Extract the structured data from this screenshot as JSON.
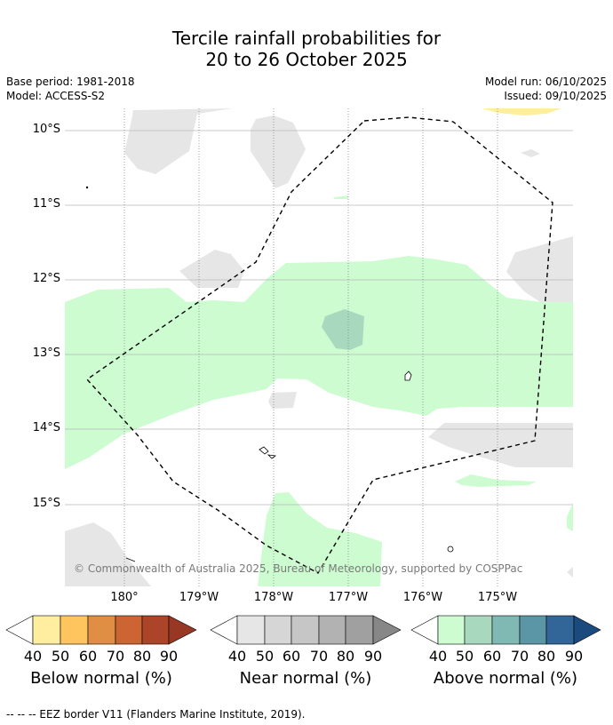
{
  "header": {
    "title_line1": "Tercile rainfall probabilities for",
    "title_line2": "20 to 26 October 2025",
    "base_period": "Base period: 1981-2018",
    "model": "Model: ACCESS-S2",
    "model_run": "Model run: 06/10/2025",
    "issued": "Issued: 09/10/2025"
  },
  "map": {
    "latitude_labels": [
      "10°S",
      "11°S",
      "12°S",
      "13°S",
      "14°S",
      "15°S"
    ],
    "longitude_labels": [
      "180°",
      "179°W",
      "178°W",
      "177°W",
      "176°W",
      "175°W"
    ],
    "copyright": "© Commonwealth of Australia 2025, Bureau of Meteorology, supported by COSPPac"
  },
  "colorbars": [
    {
      "title": "Below normal (%)",
      "ticks": [
        "40",
        "50",
        "60",
        "70",
        "80",
        "90"
      ],
      "colors": [
        "#ffeda0",
        "#fec55f",
        "#e08e44",
        "#cc6434",
        "#ab4428",
        "#983824"
      ]
    },
    {
      "title": "Near normal (%)",
      "ticks": [
        "40",
        "50",
        "60",
        "70",
        "80",
        "90"
      ],
      "colors": [
        "#e6e6e6",
        "#d6d6d6",
        "#c6c6c6",
        "#b2b2b2",
        "#a0a0a0",
        "#878787"
      ]
    },
    {
      "title": "Above normal (%)",
      "ticks": [
        "40",
        "50",
        "60",
        "70",
        "80",
        "90"
      ],
      "colors": [
        "#ccfcd0",
        "#a8d9bf",
        "#80b8b4",
        "#5a96a6",
        "#336698",
        "#1b4a7e"
      ]
    }
  ],
  "footer": {
    "legend": "--  --  -- EEZ border V11 (Flanders Marine Institute, 2019)."
  }
}
